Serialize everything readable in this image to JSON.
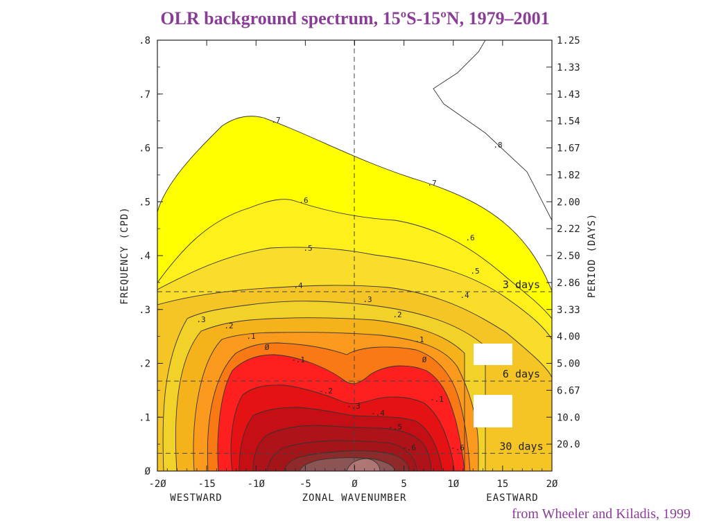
{
  "slide": {
    "title": "OLR background spectrum, 15ºS-15ºN, 1979–2001",
    "credit": "from Wheeler and Kiladis, 1999"
  },
  "chart_data": {
    "type": "contour",
    "xlabel": "ZONAL WAVENUMBER",
    "xlabel_left": "WESTWARD",
    "xlabel_right": "EASTWARD",
    "ylabel": "FREQUENCY (CPD)",
    "ylabel_right": "PERIOD (DAYS)",
    "xlim": [
      -20,
      20
    ],
    "ylim": [
      0,
      0.8
    ],
    "x_ticks": [
      "-2Ø",
      "-15",
      "-1Ø",
      "-5",
      "Ø",
      "5",
      "1Ø",
      "15",
      "2Ø"
    ],
    "x_tick_values": [
      -20,
      -15,
      -10,
      -5,
      0,
      5,
      10,
      15,
      20
    ],
    "y_ticks": [
      "Ø",
      ".1",
      ".2",
      ".3",
      ".4",
      ".5",
      ".6",
      ".7",
      ".8"
    ],
    "y_tick_values": [
      0,
      0.1,
      0.2,
      0.3,
      0.4,
      0.5,
      0.6,
      0.7,
      0.8
    ],
    "period_ticks": [
      "1.25",
      "1.33",
      "1.43",
      "1.54",
      "1.67",
      "1.82",
      "2.00",
      "2.22",
      "2.50",
      "2.86",
      "3.33",
      "4.00",
      "5.00",
      "6.67",
      "10.0",
      "20.0"
    ],
    "period_tick_freqs": [
      0.8,
      0.75,
      0.7,
      0.65,
      0.6,
      0.55,
      0.5,
      0.45,
      0.4,
      0.35,
      0.3,
      0.25,
      0.2,
      0.15,
      0.1,
      0.05
    ],
    "reference_lines": [
      {
        "label": "3 days",
        "frequency": 0.333
      },
      {
        "label": "6 days",
        "frequency": 0.167
      },
      {
        "label": "30 days",
        "frequency": 0.033
      }
    ],
    "contour_levels": [
      {
        "label": ".8",
        "color": "#ffffff"
      },
      {
        "label": ".7",
        "color": "#ffff00"
      },
      {
        "label": ".6",
        "color": "#ffef1a"
      },
      {
        "label": ".5",
        "color": "#f9dd2a"
      },
      {
        "label": ".4",
        "color": "#f4c524"
      },
      {
        "label": ".3",
        "color": "#f2d228"
      },
      {
        "label": ".2",
        "color": "#f5b21a"
      },
      {
        "label": ".1",
        "color": "#fb9a1c"
      },
      {
        "label": "Ø",
        "color": "#f97a14"
      },
      {
        "label": "-.1",
        "color": "#ff1f1f"
      },
      {
        "label": "-.2",
        "color": "#e41212"
      },
      {
        "label": "-.3",
        "color": "#c50f14"
      },
      {
        "label": "-.4",
        "color": "#ad1318"
      },
      {
        "label": "-.5",
        "color": "#a31519"
      },
      {
        "label": "-.6",
        "color": "#8f2a2a"
      },
      {
        "label": "-.7",
        "color": "#8c5555"
      },
      {
        "label": "-.8",
        "color": "#b07676"
      }
    ]
  }
}
